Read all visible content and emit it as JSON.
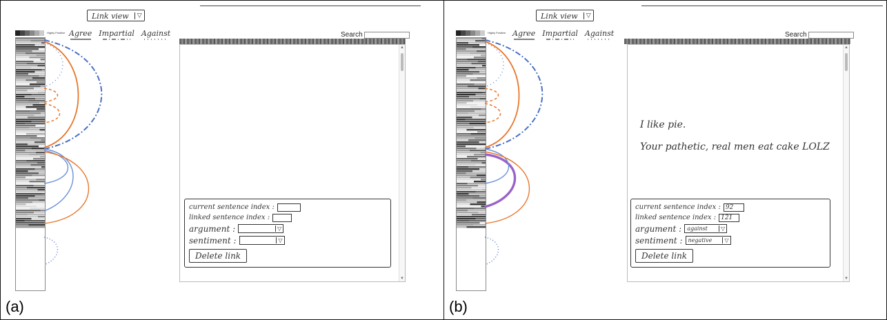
{
  "panels": [
    {
      "label": "(a)",
      "view_selector": {
        "value": "Link view",
        "arrow": "▽"
      },
      "legend": [
        "Agree",
        "Impartial",
        "Against"
      ],
      "overview_header_label": "Highly Positive",
      "search_label": "Search",
      "sentences": [],
      "form": {
        "current_label": "current sentence index :",
        "current_value": "",
        "linked_label": "linked sentence index :",
        "linked_value": "",
        "argument_label": "argument :",
        "argument_value": "",
        "sentiment_label": "sentiment :",
        "sentiment_value": "",
        "arrow": "▽",
        "delete_label": "Delete link"
      }
    },
    {
      "label": "(b)",
      "view_selector": {
        "value": "Link view",
        "arrow": "▽"
      },
      "legend": [
        "Agree",
        "Impartial",
        "Against"
      ],
      "overview_header_label": "Highly Positive",
      "search_label": "Search",
      "sentences": [
        "I like pie.",
        "Your pathetic, real men eat cake LOLZ"
      ],
      "form": {
        "current_label": "current sentence index :",
        "current_value": "92",
        "linked_label": "linked sentence index :",
        "linked_value": "121",
        "argument_label": "argument :",
        "argument_value": "against",
        "sentiment_label": "sentiment :",
        "sentiment_value": "negative",
        "arrow": "▽",
        "delete_label": "Delete link"
      }
    }
  ],
  "colors": {
    "agree": "#e8762b",
    "impartial": "#6a8fd6",
    "against": "#4a6fc4",
    "highlight": "#9a62c9"
  }
}
